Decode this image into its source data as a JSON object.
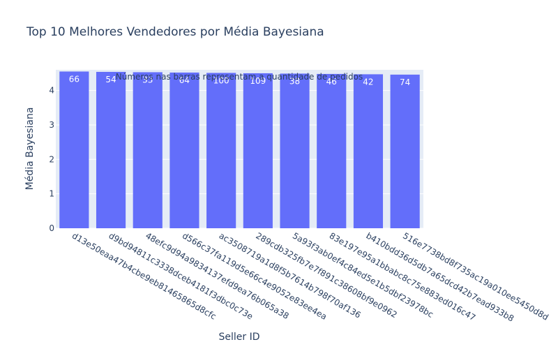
{
  "chart_data": {
    "type": "bar",
    "title": "Top 10 Melhores Vendedores por Média Bayesiana",
    "xlabel": "Seller ID",
    "ylabel": "Média Bayesiana",
    "annotation": "Números nas barras representam a quantidade de pedidos",
    "ylim": [
      0,
      4.6
    ],
    "yticks": [
      0,
      1,
      2,
      3,
      4
    ],
    "grid": true,
    "bar_color": "#636efa",
    "plot_bg": "#e5ecf6",
    "categories": [
      "d13e50eaa47b4cbe9eb81465865d8cfc",
      "d9bd94811c3338dceb4181f3dbc0c73e",
      "48efc9d94a9834137efd9ea76b065a38",
      "d566c37fa119d5e66c4e9052e83ee4ea",
      "ac3508719a1d8f5b7614b798f70af136",
      "289cdb325fb7e7f891c38608bf9e0962",
      "5a93f3ab0ef4c84ed5e1b5dbf23978bc",
      "83e197e95a1bbabc8c75e883ed016c47",
      "b410bdd36d5db7a65dcd42b7ead933b8",
      "516e7738bd8f735ac19a010ee5450d8d"
    ],
    "values": [
      4.55,
      4.54,
      4.53,
      4.52,
      4.51,
      4.5,
      4.49,
      4.48,
      4.47,
      4.46
    ],
    "bar_labels": [
      "66",
      "54",
      "33",
      "64",
      "100",
      "109",
      "38",
      "46",
      "42",
      "74"
    ]
  }
}
